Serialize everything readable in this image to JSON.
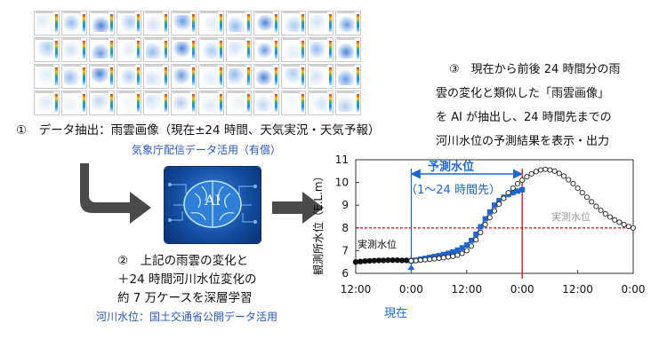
{
  "step1": {
    "title": "①　データ抽出：雨雲画像（現在±24 時間、天気実況・天気予報）",
    "note": "気象庁配信データ活用（有償）"
  },
  "ai": {
    "label": "AI"
  },
  "step2": {
    "line1": "②　上記の雨雲の変化と",
    "line2": "＋24 時間河川水位変化の",
    "line3": "約 7 万ケースを深層学習",
    "note": "河川水位：国土交通省公開データ活用"
  },
  "step3": {
    "line1": "③　現在から前後 24 時間分の雨",
    "line2": "雲の変化と類似した「雨雲画像」",
    "line3": "を AI が抽出し、24 時間先までの",
    "line4": "河川水位の予測結果を表示・出力"
  },
  "chart_labels": {
    "forecast_title": "予測水位",
    "forecast_range": "（1〜24 時間先）",
    "actual_left": "実測水位",
    "actual_right": "実測水位",
    "now": "現在",
    "ylabel": "観測所水位（E.L.m）"
  },
  "colors": {
    "accent": "#2a56c6",
    "forecast": "#1e66d0",
    "observed": "#111111",
    "threshold": "#cc2222",
    "now_marker": "#e23b2e"
  },
  "chart_data": {
    "type": "line",
    "xlabel": "",
    "ylabel": "観測所水位（E.L.m）",
    "ylim": [
      6,
      11
    ],
    "yticks": [
      6,
      7,
      8,
      9,
      10,
      11
    ],
    "x_tick_labels": [
      "12:00",
      "0:00",
      "12:00",
      "0:00",
      "12:00",
      "0:00"
    ],
    "x_tick_hours": [
      0,
      12,
      24,
      36,
      48,
      60
    ],
    "xlim": [
      0,
      60
    ],
    "now_hour": 12,
    "forecast_end_hour": 36,
    "threshold": 8,
    "series": [
      {
        "name": "実測水位",
        "style": "filled-circle",
        "x": [
          0,
          1,
          2,
          3,
          4,
          5,
          6,
          7,
          8,
          9,
          10,
          11,
          12
        ],
        "y": [
          6.5,
          6.52,
          6.54,
          6.55,
          6.56,
          6.57,
          6.57,
          6.58,
          6.58,
          6.58,
          6.57,
          6.57,
          6.56
        ]
      },
      {
        "name": "予測水位",
        "style": "square",
        "x": [
          12,
          13,
          14,
          15,
          16,
          17,
          18,
          19,
          20,
          21,
          22,
          23,
          24,
          25,
          26,
          27,
          28,
          29,
          30,
          31,
          32,
          33,
          34,
          35,
          36
        ],
        "y": [
          6.55,
          6.58,
          6.62,
          6.66,
          6.7,
          6.74,
          6.78,
          6.83,
          6.88,
          6.94,
          7.02,
          7.12,
          7.25,
          7.45,
          7.72,
          8.05,
          8.4,
          8.7,
          9.0,
          9.2,
          9.35,
          9.47,
          9.55,
          9.62,
          9.68
        ]
      },
      {
        "name": "実測水位",
        "style": "open-circle",
        "x": [
          12,
          13,
          14,
          15,
          16,
          17,
          18,
          19,
          20,
          21,
          22,
          23,
          24,
          25,
          26,
          27,
          28,
          29,
          30,
          31,
          32,
          33,
          34,
          35,
          36,
          37,
          38,
          39,
          40,
          41,
          42,
          43,
          44,
          45,
          46,
          47,
          48,
          49,
          50,
          51,
          52,
          53,
          54,
          55,
          56,
          57,
          58,
          59,
          60
        ],
        "y": [
          6.55,
          6.56,
          6.58,
          6.6,
          6.62,
          6.64,
          6.66,
          6.69,
          6.72,
          6.75,
          6.8,
          6.88,
          7.0,
          7.2,
          7.48,
          7.8,
          8.15,
          8.45,
          8.75,
          9.05,
          9.3,
          9.55,
          9.75,
          9.95,
          10.1,
          10.25,
          10.38,
          10.48,
          10.55,
          10.58,
          10.55,
          10.5,
          10.4,
          10.28,
          10.12,
          9.95,
          9.75,
          9.55,
          9.35,
          9.15,
          8.95,
          8.78,
          8.62,
          8.48,
          8.35,
          8.25,
          8.15,
          8.06,
          8.0
        ]
      }
    ]
  }
}
